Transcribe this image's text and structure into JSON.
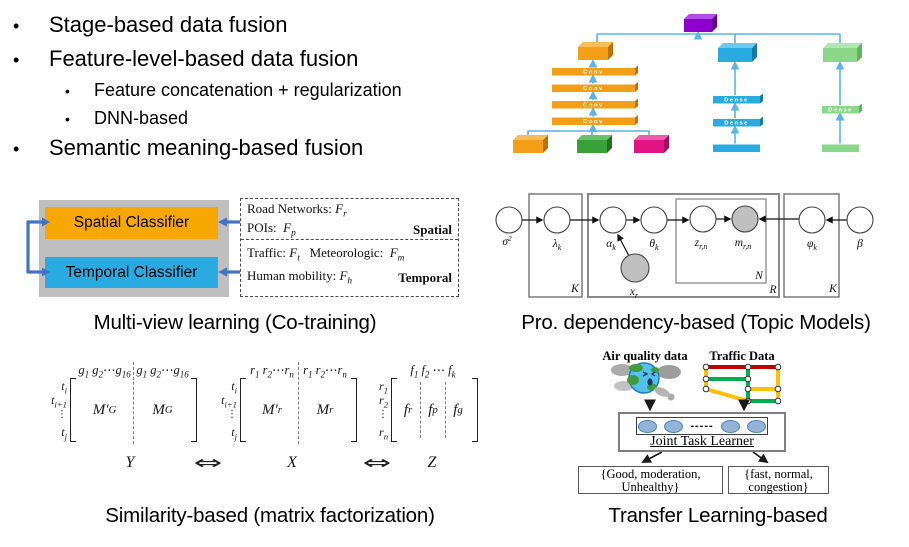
{
  "colors": {
    "orange": "#F59E18",
    "orange-dark": "#BA7108",
    "orange-light": "#F8BC58",
    "purple": "#8E00D0",
    "purple-dark": "#5E0090",
    "purple-light": "#B14CE8",
    "blue": "#29ABE2",
    "blue-dark": "#1779A6",
    "blue-light": "#6CC9F0",
    "green": "#3AA03A",
    "green-dark": "#237023",
    "green-light": "#6BC06B",
    "magenta": "#E01483",
    "magenta-dark": "#A50C5E",
    "magenta-light": "#F05CAC",
    "lgreen": "#8BD88B",
    "lgreen-dark": "#5FB45F",
    "lgreen-light": "#B2E6B2",
    "line-blue": "#5AB6E8",
    "arrow-blue": "#4472C4",
    "panel-gray": "#BFBFBF",
    "classifier-orange": "#F7A800",
    "node-gray": "#C0C0C0",
    "ellipse-fill": "#95B3D7",
    "ellipse-stroke": "#4F81BD",
    "tl-red": "#C00000",
    "tl-yellow": "#FFC000",
    "tl-green": "#00B050"
  },
  "bullets": {
    "marker": "•",
    "items": [
      {
        "level": 1,
        "label": "Stage-based data fusion"
      },
      {
        "level": 1,
        "label": "Feature-level-based data fusion"
      },
      {
        "level": 2,
        "label": "Feature concatenation + regularization"
      },
      {
        "level": 2,
        "label": "DNN-based"
      },
      {
        "level": 1,
        "label": "Semantic meaning-based fusion"
      }
    ]
  },
  "dnn": {
    "conv": "Conv",
    "dense": "Dense"
  },
  "cotraining": {
    "title": "Multi-view learning (Co-training)",
    "spatial_classifier": "Spatial Classifier",
    "temporal_classifier": "Temporal Classifier",
    "road_networks_html": "Road Networks: <i>F<sub>r</sub></i>",
    "pois_html": "POIs: &nbsp;<i>F<sub>p</sub></i>",
    "spatial_tag": "Spatial",
    "traffic_html": "Traffic: <i>F<sub>t</sub></i> &nbsp;&nbsp;Meteorologic: &nbsp;<i>F<sub>m</sub></i>",
    "human_mobility_html": "Human mobility: <i>F<sub>h</sub></i>",
    "temporal_tag": "Temporal"
  },
  "topic": {
    "title": "Pro. dependency-based (Topic Models)",
    "nodes": {
      "sigma_html": "σ<tspan dy='-4' font-size='7'>2</tspan>",
      "lambda_html": "λ<tspan dy='3' font-size='8'>k</tspan>",
      "alpha_html": "α<tspan dy='3' font-size='8'>k</tspan>",
      "theta_html": "θ<tspan dy='3' font-size='8'>k</tspan>",
      "z_html": "z<tspan dy='3' font-size='8'>r,n</tspan>",
      "m_html": "m<tspan dy='3' font-size='8'>r,n</tspan>",
      "phi_html": "φ<tspan dy='3' font-size='8'>k</tspan>",
      "beta": "β",
      "x_html": "x<tspan dy='3' font-size='8'>r</tspan>"
    },
    "plates": {
      "k_left": "K",
      "n": "N",
      "r": "R",
      "k_right": "K"
    }
  },
  "matrix": {
    "title": "Similarity-based (matrix factorization)",
    "y": {
      "header1_html": "g<sub>1</sub> g<sub>2</sub>⋯g<sub>16</sub>",
      "header2_html": "g<sub>1</sub> g<sub>2</sub>⋯g<sub>16</sub>",
      "rows_html": [
        "t<sub>i</sub>",
        "t<sub>i+1</sub>",
        "⋮",
        "t<sub>j</sub>"
      ],
      "cell1_html": "M′<sub>G</sub>",
      "cell2_html": "M<sub>G</sub>",
      "label": "Y"
    },
    "x": {
      "header1_html": "r<sub>1</sub> r<sub>2</sub>⋯r<sub>n</sub>",
      "header2_html": "r<sub>1</sub> r<sub>2</sub>⋯r<sub>n</sub>",
      "rows_html": [
        "t<sub>i</sub>",
        "t<sub>i+1</sub>",
        "⋮",
        "t<sub>j</sub>"
      ],
      "cell1_html": "M′<sub>r</sub>",
      "cell2_html": "M<sub>r</sub>",
      "label": "X"
    },
    "z": {
      "header_html": "f<sub>1</sub> f<sub>2</sub> ⋯ f<sub>k</sub>",
      "rows_html": [
        "r<sub>1</sub>",
        "r<sub>2</sub>",
        "⋮",
        "r<sub>n</sub>"
      ],
      "cells_html": [
        "f<sub>r</sub>",
        "f<sub>p</sub>",
        "f<sub>g</sub>"
      ],
      "label": "Z"
    },
    "equiv": "⇔"
  },
  "transfer": {
    "title": "Transfer Learning-based",
    "air_label": "Air quality data",
    "traffic_label": "Traffic Data",
    "learner_label": "Joint Task Learner",
    "dots": "-----",
    "output1_line1": "{Good, moderation,",
    "output1_line2": "Unhealthy}",
    "output2_line1": "{fast, normal,",
    "output2_line2": "congestion}"
  }
}
